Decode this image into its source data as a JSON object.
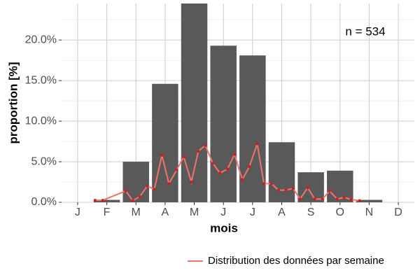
{
  "chart_data": {
    "type": "bar",
    "x_label": "mois",
    "y_label": "proportion [%]",
    "annotation": "n = 534",
    "categories": [
      "J",
      "F",
      "M",
      "A",
      "M",
      "J",
      "J",
      "A",
      "S",
      "O",
      "N",
      "D"
    ],
    "values": [
      0,
      0.3,
      5.0,
      14.6,
      24.5,
      19.3,
      18.1,
      7.4,
      3.7,
      3.9,
      0.3,
      0
    ],
    "color": "#595959",
    "xlim": [
      0.45,
      12.55
    ],
    "ylim": [
      0,
      24.5
    ],
    "yticks": [
      {
        "value": 0,
        "label": "0.0%"
      },
      {
        "value": 5,
        "label": "5.0%"
      },
      {
        "value": 10,
        "label": "10.0%"
      },
      {
        "value": 15,
        "label": "15.0%"
      },
      {
        "value": 20,
        "label": "20.0%"
      }
    ],
    "y_minor_ticks": [
      2.5,
      7.5,
      12.5,
      17.5,
      22.5
    ],
    "grid": true,
    "legend": "bottom-right",
    "overlay": {
      "type": "line",
      "name": "Distribution des données par semaine",
      "color": "#f0736a",
      "marker_color": "#d7191c",
      "x": [
        1.6,
        1.86,
        2.65,
        2.89,
        3.13,
        3.39,
        3.63,
        3.89,
        4.13,
        4.4,
        4.64,
        4.9,
        5.14,
        5.38,
        5.64,
        5.88,
        6.14,
        6.38,
        6.65,
        6.89,
        7.16,
        7.39,
        7.65,
        7.89,
        8.15,
        8.39,
        8.63,
        8.89,
        9.13,
        9.4,
        9.64,
        9.9,
        10.14,
        10.38,
        10.67
      ],
      "values": [
        0.25,
        0.25,
        1.4,
        0.2,
        0.7,
        2.0,
        1.6,
        5.8,
        2.3,
        4.0,
        5.6,
        2.5,
        6.3,
        7.0,
        4.8,
        3.6,
        4.1,
        5.9,
        2.8,
        4.4,
        7.2,
        2.3,
        2.3,
        1.5,
        1.5,
        1.7,
        0.4,
        1.8,
        0.4,
        0.4,
        1.4,
        0.4,
        0.6,
        0.35,
        0.2
      ]
    }
  }
}
